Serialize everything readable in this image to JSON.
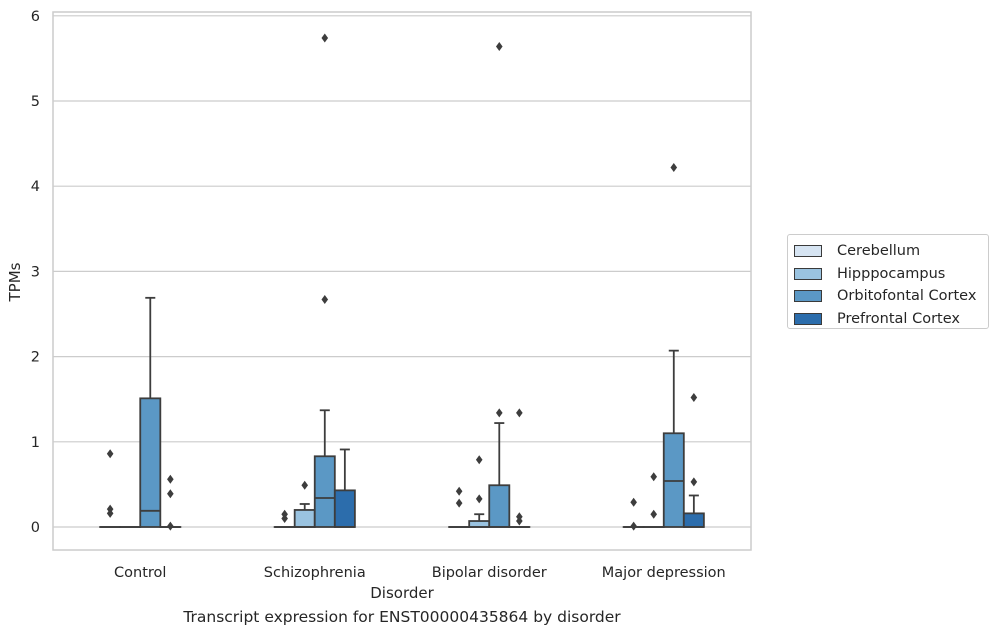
{
  "chart_data": {
    "type": "boxplot",
    "xlabel": "Disorder",
    "ylabel": "TPMs",
    "ylim": [
      -0.27,
      6.05
    ],
    "yticks": [
      0,
      1,
      2,
      3,
      4,
      5,
      6
    ],
    "grid": "horizontal",
    "legend_position": "right",
    "categories": [
      "Control",
      "Schizophrenia",
      "Bipolar disorder",
      "Major depression"
    ],
    "series": [
      {
        "name": "Cerebellum",
        "color": "#d6e4f2",
        "boxes": [
          {
            "min": 0,
            "q1": 0,
            "median": 0,
            "q3": 0,
            "max": 0,
            "outliers": [
              0.16,
              0.21,
              0.86
            ]
          },
          {
            "min": 0,
            "q1": 0,
            "median": 0,
            "q3": 0,
            "max": 0,
            "outliers": [
              0.1,
              0.15
            ]
          },
          {
            "min": 0,
            "q1": 0,
            "median": 0,
            "q3": 0,
            "max": 0,
            "outliers": [
              0.28,
              0.42
            ]
          },
          {
            "min": 0,
            "q1": 0,
            "median": 0,
            "q3": 0,
            "max": 0,
            "outliers": [
              0.01,
              0.29
            ]
          }
        ]
      },
      {
        "name": "Hipppocampus",
        "color": "#9ac3e0",
        "boxes": [
          {
            "min": 0,
            "q1": 0,
            "median": 0,
            "q3": 0,
            "max": 0,
            "outliers": []
          },
          {
            "min": 0,
            "q1": 0,
            "median": 0,
            "q3": 0.2,
            "max": 0.27,
            "outliers": [
              0.49
            ]
          },
          {
            "min": 0,
            "q1": 0,
            "median": 0,
            "q3": 0.07,
            "max": 0.15,
            "outliers": [
              0.33,
              0.79
            ]
          },
          {
            "min": 0,
            "q1": 0,
            "median": 0,
            "q3": 0,
            "max": 0,
            "outliers": [
              0.15,
              0.59
            ]
          }
        ]
      },
      {
        "name": "Orbitofontal Cortex",
        "color": "#5b98c5",
        "boxes": [
          {
            "min": 0,
            "q1": 0,
            "median": 0.19,
            "q3": 1.51,
            "max": 2.69,
            "outliers": []
          },
          {
            "min": 0,
            "q1": 0,
            "median": 0.34,
            "q3": 0.83,
            "max": 1.37,
            "outliers": [
              2.67,
              5.74
            ]
          },
          {
            "min": 0,
            "q1": 0,
            "median": 0,
            "q3": 0.49,
            "max": 1.22,
            "outliers": [
              1.34,
              5.64
            ]
          },
          {
            "min": 0,
            "q1": 0,
            "median": 0.54,
            "q3": 1.1,
            "max": 2.07,
            "outliers": [
              4.22
            ]
          }
        ]
      },
      {
        "name": "Prefrontal Cortex",
        "color": "#2c6dac",
        "boxes": [
          {
            "min": 0,
            "q1": 0,
            "median": 0,
            "q3": 0,
            "max": 0,
            "outliers": [
              0.01,
              0.39,
              0.56
            ]
          },
          {
            "min": 0,
            "q1": 0,
            "median": 0,
            "q3": 0.43,
            "max": 0.91,
            "outliers": []
          },
          {
            "min": 0,
            "q1": 0,
            "median": 0,
            "q3": 0,
            "max": 0,
            "outliers": [
              0.07,
              0.12,
              1.34
            ]
          },
          {
            "min": 0,
            "q1": 0,
            "median": 0,
            "q3": 0.16,
            "max": 0.37,
            "outliers": [
              0.53,
              1.52
            ]
          }
        ]
      }
    ]
  },
  "caption": "Transcript expression for ENST00000435864 by disorder"
}
